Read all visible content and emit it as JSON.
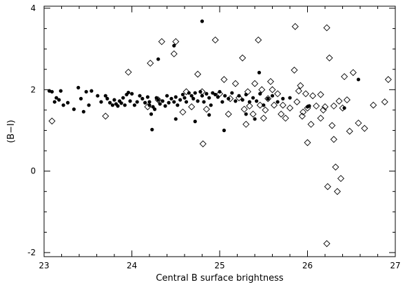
{
  "chart_data": {
    "type": "scatter",
    "title": "",
    "xlabel": "Central B surface brightness",
    "ylabel": "(B−I)",
    "xlim": [
      23,
      27
    ],
    "ylim": [
      -2.1,
      4.05
    ],
    "x_ticks": [
      23,
      24,
      25,
      26,
      27
    ],
    "y_ticks": [
      -2,
      0,
      2,
      4
    ],
    "x_minor_step": 0.2,
    "y_minor_step": 0.5,
    "grid": false,
    "legend": "none",
    "series": [
      {
        "marker": "filled-circle",
        "color": "#000000",
        "points": [
          [
            23.06,
            1.97
          ],
          [
            23.09,
            1.95
          ],
          [
            23.12,
            1.7
          ],
          [
            23.14,
            1.8
          ],
          [
            23.17,
            1.75
          ],
          [
            23.19,
            1.97
          ],
          [
            23.22,
            1.62
          ],
          [
            23.27,
            1.68
          ],
          [
            23.34,
            1.52
          ],
          [
            23.39,
            2.05
          ],
          [
            23.42,
            1.78
          ],
          [
            23.45,
            1.46
          ],
          [
            23.48,
            1.95
          ],
          [
            23.51,
            1.62
          ],
          [
            23.54,
            1.97
          ],
          [
            23.61,
            1.85
          ],
          [
            23.65,
            1.7
          ],
          [
            23.7,
            1.85
          ],
          [
            23.72,
            1.78
          ],
          [
            23.75,
            1.68
          ],
          [
            23.78,
            1.62
          ],
          [
            23.8,
            1.75
          ],
          [
            23.82,
            1.65
          ],
          [
            23.84,
            1.6
          ],
          [
            23.86,
            1.72
          ],
          [
            23.88,
            1.67
          ],
          [
            23.9,
            1.8
          ],
          [
            23.92,
            1.62
          ],
          [
            23.94,
            1.88
          ],
          [
            23.96,
            1.93
          ],
          [
            23.98,
            1.72
          ],
          [
            24.0,
            1.9
          ],
          [
            24.03,
            1.62
          ],
          [
            24.06,
            1.7
          ],
          [
            24.09,
            1.85
          ],
          [
            24.12,
            1.78
          ],
          [
            24.15,
            1.68
          ],
          [
            24.18,
            1.82
          ],
          [
            24.2,
            1.62
          ],
          [
            24.22,
            1.4
          ],
          [
            24.24,
            1.58
          ],
          [
            24.26,
            1.52
          ],
          [
            24.2,
            1.7
          ],
          [
            24.28,
            1.8
          ],
          [
            24.3,
            1.75
          ],
          [
            24.32,
            1.65
          ],
          [
            24.35,
            1.72
          ],
          [
            24.38,
            1.6
          ],
          [
            24.4,
            1.85
          ],
          [
            24.42,
            1.68
          ],
          [
            24.45,
            1.78
          ],
          [
            24.48,
            1.7
          ],
          [
            24.5,
            1.82
          ],
          [
            24.52,
            1.62
          ],
          [
            24.55,
            1.75
          ],
          [
            24.58,
            1.88
          ],
          [
            24.6,
            1.8
          ],
          [
            24.62,
            1.7
          ],
          [
            24.65,
            1.92
          ],
          [
            24.68,
            1.85
          ],
          [
            24.7,
            1.78
          ],
          [
            24.72,
            1.92
          ],
          [
            24.75,
            1.72
          ],
          [
            24.78,
            1.95
          ],
          [
            24.8,
            1.85
          ],
          [
            24.82,
            1.7
          ],
          [
            24.85,
            1.9
          ],
          [
            24.88,
            1.8
          ],
          [
            24.9,
            1.62
          ],
          [
            24.92,
            1.92
          ],
          [
            24.95,
            1.88
          ],
          [
            24.98,
            1.82
          ],
          [
            25.0,
            1.95
          ],
          [
            25.03,
            1.7
          ],
          [
            25.06,
            1.85
          ],
          [
            25.1,
            1.78
          ],
          [
            25.14,
            1.92
          ],
          [
            25.18,
            1.72
          ],
          [
            25.22,
            1.85
          ],
          [
            25.26,
            1.75
          ],
          [
            25.3,
            1.88
          ],
          [
            25.34,
            1.7
          ],
          [
            25.38,
            1.8
          ],
          [
            25.42,
            1.72
          ],
          [
            25.46,
            1.9
          ],
          [
            25.5,
            1.62
          ],
          [
            25.55,
            1.78
          ],
          [
            25.6,
            1.85
          ],
          [
            25.66,
            1.7
          ],
          [
            25.72,
            1.78
          ],
          [
            25.8,
            1.8
          ],
          [
            24.3,
            2.75
          ],
          [
            24.48,
            3.08
          ],
          [
            24.8,
            3.68
          ],
          [
            25.45,
            2.42
          ],
          [
            24.23,
            1.02
          ],
          [
            24.5,
            1.28
          ],
          [
            24.72,
            1.22
          ],
          [
            24.88,
            1.38
          ],
          [
            25.05,
            1.0
          ],
          [
            25.3,
            1.4
          ],
          [
            25.4,
            1.28
          ],
          [
            26.0,
            1.58
          ],
          [
            26.02,
            1.6
          ],
          [
            26.42,
            1.55
          ],
          [
            26.58,
            2.25
          ]
        ]
      },
      {
        "marker": "open-diamond",
        "color": "#000000",
        "points": [
          [
            23.09,
            1.23
          ],
          [
            23.7,
            1.35
          ],
          [
            23.96,
            2.43
          ],
          [
            24.18,
            1.58
          ],
          [
            24.21,
            2.65
          ],
          [
            24.3,
            1.75
          ],
          [
            24.34,
            3.18
          ],
          [
            24.48,
            2.88
          ],
          [
            24.5,
            3.18
          ],
          [
            24.58,
            1.45
          ],
          [
            24.62,
            1.95
          ],
          [
            24.68,
            1.58
          ],
          [
            24.75,
            2.38
          ],
          [
            24.8,
            1.95
          ],
          [
            24.81,
            0.67
          ],
          [
            24.85,
            1.52
          ],
          [
            24.95,
            3.22
          ],
          [
            25.0,
            1.9
          ],
          [
            25.05,
            2.25
          ],
          [
            25.1,
            1.4
          ],
          [
            25.12,
            1.78
          ],
          [
            25.18,
            2.15
          ],
          [
            25.22,
            1.8
          ],
          [
            25.26,
            2.78
          ],
          [
            25.28,
            1.52
          ],
          [
            25.3,
            1.15
          ],
          [
            25.32,
            1.95
          ],
          [
            25.34,
            1.6
          ],
          [
            25.38,
            1.4
          ],
          [
            25.4,
            2.15
          ],
          [
            25.44,
            3.22
          ],
          [
            25.46,
            1.62
          ],
          [
            25.48,
            2.0
          ],
          [
            25.5,
            1.3
          ],
          [
            25.52,
            1.5
          ],
          [
            25.55,
            1.78
          ],
          [
            25.58,
            2.2
          ],
          [
            25.6,
            2.0
          ],
          [
            25.62,
            1.62
          ],
          [
            25.66,
            1.9
          ],
          [
            25.7,
            1.4
          ],
          [
            25.72,
            1.62
          ],
          [
            25.75,
            1.3
          ],
          [
            25.8,
            1.55
          ],
          [
            25.85,
            2.48
          ],
          [
            25.86,
            3.55
          ],
          [
            25.88,
            1.7
          ],
          [
            25.9,
            1.97
          ],
          [
            25.92,
            2.1
          ],
          [
            25.94,
            1.35
          ],
          [
            25.98,
            1.9
          ],
          [
            26.0,
            0.7
          ],
          [
            26.04,
            1.15
          ],
          [
            26.06,
            1.85
          ],
          [
            26.1,
            1.6
          ],
          [
            26.15,
            1.88
          ],
          [
            26.18,
            1.5
          ],
          [
            26.2,
            1.58
          ],
          [
            26.22,
            3.52
          ],
          [
            26.23,
            -0.38
          ],
          [
            26.25,
            2.78
          ],
          [
            26.28,
            1.12
          ],
          [
            26.3,
            0.78
          ],
          [
            26.32,
            0.1
          ],
          [
            26.34,
            -0.5
          ],
          [
            26.36,
            1.72
          ],
          [
            26.38,
            -0.18
          ],
          [
            26.42,
            2.32
          ],
          [
            26.45,
            1.75
          ],
          [
            26.48,
            0.98
          ],
          [
            26.52,
            2.42
          ],
          [
            26.58,
            1.18
          ],
          [
            26.65,
            1.05
          ],
          [
            26.75,
            1.62
          ],
          [
            26.88,
            1.7
          ],
          [
            26.92,
            2.25
          ],
          [
            26.22,
            -1.78
          ],
          [
            26.15,
            1.3
          ],
          [
            26.0,
            1.55
          ],
          [
            25.95,
            1.45
          ],
          [
            26.3,
            1.6
          ],
          [
            26.4,
            1.55
          ]
        ]
      }
    ]
  }
}
